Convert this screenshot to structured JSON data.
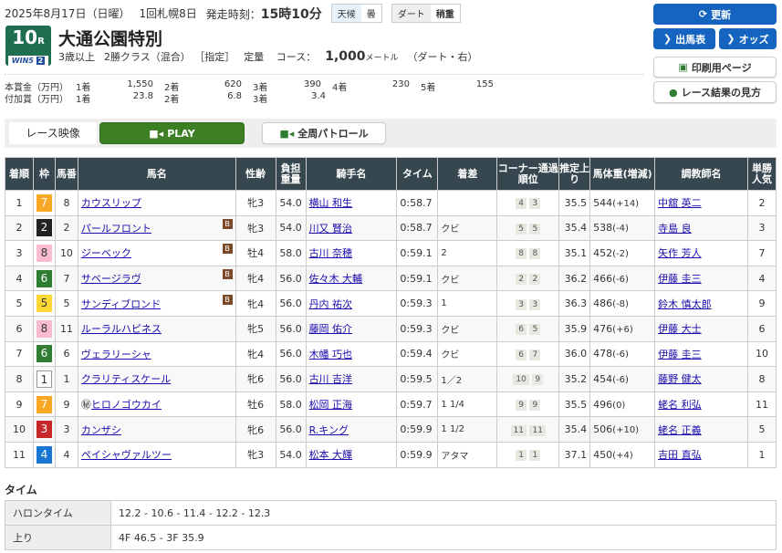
{
  "header": {
    "date": "2025年8月17日（日曜）",
    "meeting": "1回札幌8日",
    "post_time_label": "発走時刻：",
    "post_time": "15時10分",
    "weather_label": "天候",
    "weather": "曇",
    "track_label": "ダート",
    "track_cond": "稍重",
    "race_no": "10",
    "race_unit": "R",
    "win5": "WIN5",
    "win5_no": "2",
    "race_name": "大通公園特別",
    "cond1": "3歳以上",
    "cond2": "2勝クラス（混合）",
    "cond3": "［指定］",
    "cond4": "定量",
    "course_label": "コース：",
    "distance": "1,000",
    "unit": "メートル",
    "course_detail": "（ダート・右）"
  },
  "prize": {
    "main_label": "本賞金（万円）",
    "main": [
      [
        "1着",
        "1,550"
      ],
      [
        "2着",
        "620"
      ],
      [
        "3着",
        "390"
      ],
      [
        "4着",
        "230"
      ],
      [
        "5着",
        "155"
      ]
    ],
    "add_label": "付加賞（万円）",
    "add": [
      [
        "1着",
        "23.8"
      ],
      [
        "2着",
        "6.8"
      ],
      [
        "3着",
        "3.4"
      ]
    ]
  },
  "buttons": {
    "refresh": "更新",
    "entries": "出馬表",
    "odds": "オッズ",
    "print": "印刷用ページ",
    "howto": "レース結果の見方"
  },
  "video": {
    "label": "レース映像",
    "play": "PLAY",
    "patrol": "全周パトロール"
  },
  "columns": [
    "着順",
    "枠",
    "馬番",
    "馬名",
    "性齢",
    "負担重量",
    "騎手名",
    "タイム",
    "着差",
    "コーナー通過順位",
    "推定上り",
    "馬体重(増減)",
    "調教師名",
    "単勝人気"
  ],
  "waku_colors": {
    "1": "#ffffff",
    "2": "#222222",
    "3": "#c62828",
    "4": "#1976d2",
    "5": "#fdd835",
    "6": "#2e7d32",
    "7": "#f9a825",
    "8": "#f8bbd0"
  },
  "rows": [
    {
      "pos": "1",
      "waku": "7",
      "num": "8",
      "horse": "カウスリップ",
      "blinker": "",
      "mark": "",
      "sex": "牝3",
      "wt": "54.0",
      "jockey": "横山 和生",
      "time": "0:58.7",
      "margin": "",
      "c1": "4",
      "c2": "3",
      "agari": "35.5",
      "bw": "544",
      "diff": "(+14)",
      "trainer": "中舘 英二",
      "pop": "2"
    },
    {
      "pos": "2",
      "waku": "2",
      "num": "2",
      "horse": "パールフロント",
      "blinker": "B",
      "mark": "",
      "sex": "牝3",
      "wt": "54.0",
      "jockey": "川又 賢治",
      "time": "0:58.7",
      "margin": "クビ",
      "c1": "5",
      "c2": "5",
      "agari": "35.4",
      "bw": "538",
      "diff": "(-4)",
      "trainer": "寺島 良",
      "pop": "3"
    },
    {
      "pos": "3",
      "waku": "8",
      "num": "10",
      "horse": "ジーベック",
      "blinker": "B",
      "mark": "",
      "sex": "牡4",
      "wt": "58.0",
      "jockey": "古川 奈穂",
      "time": "0:59.1",
      "margin": "2",
      "c1": "8",
      "c2": "8",
      "agari": "35.1",
      "bw": "452",
      "diff": "(-2)",
      "trainer": "矢作 芳人",
      "pop": "7"
    },
    {
      "pos": "4",
      "waku": "6",
      "num": "7",
      "horse": "サベージラヴ",
      "blinker": "B",
      "mark": "",
      "sex": "牝4",
      "wt": "56.0",
      "jockey": "佐々木 大輔",
      "time": "0:59.1",
      "margin": "クビ",
      "c1": "2",
      "c2": "2",
      "agari": "36.2",
      "bw": "466",
      "diff": "(-6)",
      "trainer": "伊藤 圭三",
      "pop": "4"
    },
    {
      "pos": "5",
      "waku": "5",
      "num": "5",
      "horse": "サンディブロンド",
      "blinker": "B",
      "mark": "",
      "sex": "牝4",
      "wt": "56.0",
      "jockey": "丹内 祐次",
      "time": "0:59.3",
      "margin": "1",
      "c1": "3",
      "c2": "3",
      "agari": "36.3",
      "bw": "486",
      "diff": "(-8)",
      "trainer": "鈴木 慎太郎",
      "pop": "9"
    },
    {
      "pos": "6",
      "waku": "8",
      "num": "11",
      "horse": "ルーラルハピネス",
      "blinker": "",
      "mark": "",
      "sex": "牝5",
      "wt": "56.0",
      "jockey": "藤岡 佑介",
      "time": "0:59.3",
      "margin": "クビ",
      "c1": "6",
      "c2": "5",
      "agari": "35.9",
      "bw": "476",
      "diff": "(+6)",
      "trainer": "伊藤 大士",
      "pop": "6"
    },
    {
      "pos": "7",
      "waku": "6",
      "num": "6",
      "horse": "ヴェラリーシャ",
      "blinker": "",
      "mark": "",
      "sex": "牝4",
      "wt": "56.0",
      "jockey": "木幡 巧也",
      "time": "0:59.4",
      "margin": "クビ",
      "c1": "6",
      "c2": "7",
      "agari": "36.0",
      "bw": "478",
      "diff": "(-6)",
      "trainer": "伊藤 圭三",
      "pop": "10"
    },
    {
      "pos": "8",
      "waku": "1",
      "num": "1",
      "horse": "クラリティスケール",
      "blinker": "",
      "mark": "",
      "sex": "牝6",
      "wt": "56.0",
      "jockey": "古川 吉洋",
      "time": "0:59.5",
      "margin": "1／2",
      "c1": "10",
      "c2": "9",
      "agari": "35.2",
      "bw": "454",
      "diff": "(-6)",
      "trainer": "藤野 健太",
      "pop": "8"
    },
    {
      "pos": "9",
      "waku": "7",
      "num": "9",
      "horse": "ヒロノゴウカイ",
      "blinker": "",
      "mark": "㊙",
      "sex": "牡6",
      "wt": "58.0",
      "jockey": "松岡 正海",
      "time": "0:59.7",
      "margin": "1 1/4",
      "c1": "9",
      "c2": "9",
      "agari": "35.5",
      "bw": "496",
      "diff": "(0)",
      "trainer": "蛯名 利弘",
      "pop": "11"
    },
    {
      "pos": "10",
      "waku": "3",
      "num": "3",
      "horse": "カンザシ",
      "blinker": "",
      "mark": "",
      "sex": "牝6",
      "wt": "56.0",
      "jockey": "R.キング",
      "time": "0:59.9",
      "margin": "1 1/2",
      "c1": "11",
      "c2": "11",
      "agari": "35.4",
      "bw": "506",
      "diff": "(+10)",
      "trainer": "蛯名 正義",
      "pop": "5"
    },
    {
      "pos": "11",
      "waku": "4",
      "num": "4",
      "horse": "ペイシャヴァルツー",
      "blinker": "",
      "mark": "",
      "sex": "牝3",
      "wt": "54.0",
      "jockey": "松本 大輝",
      "time": "0:59.9",
      "margin": "アタマ",
      "c1": "1",
      "c2": "1",
      "agari": "37.1",
      "bw": "450",
      "diff": "(+4)",
      "trainer": "吉田 直弘",
      "pop": "1"
    }
  ],
  "time_section": {
    "title": "タイム",
    "furlong_label": "ハロンタイム",
    "furlong": "12.2 - 10.6 - 11.4 - 12.2 - 12.3",
    "agari_label": "上り",
    "agari": "4F 46.5 - 3F 35.9"
  }
}
